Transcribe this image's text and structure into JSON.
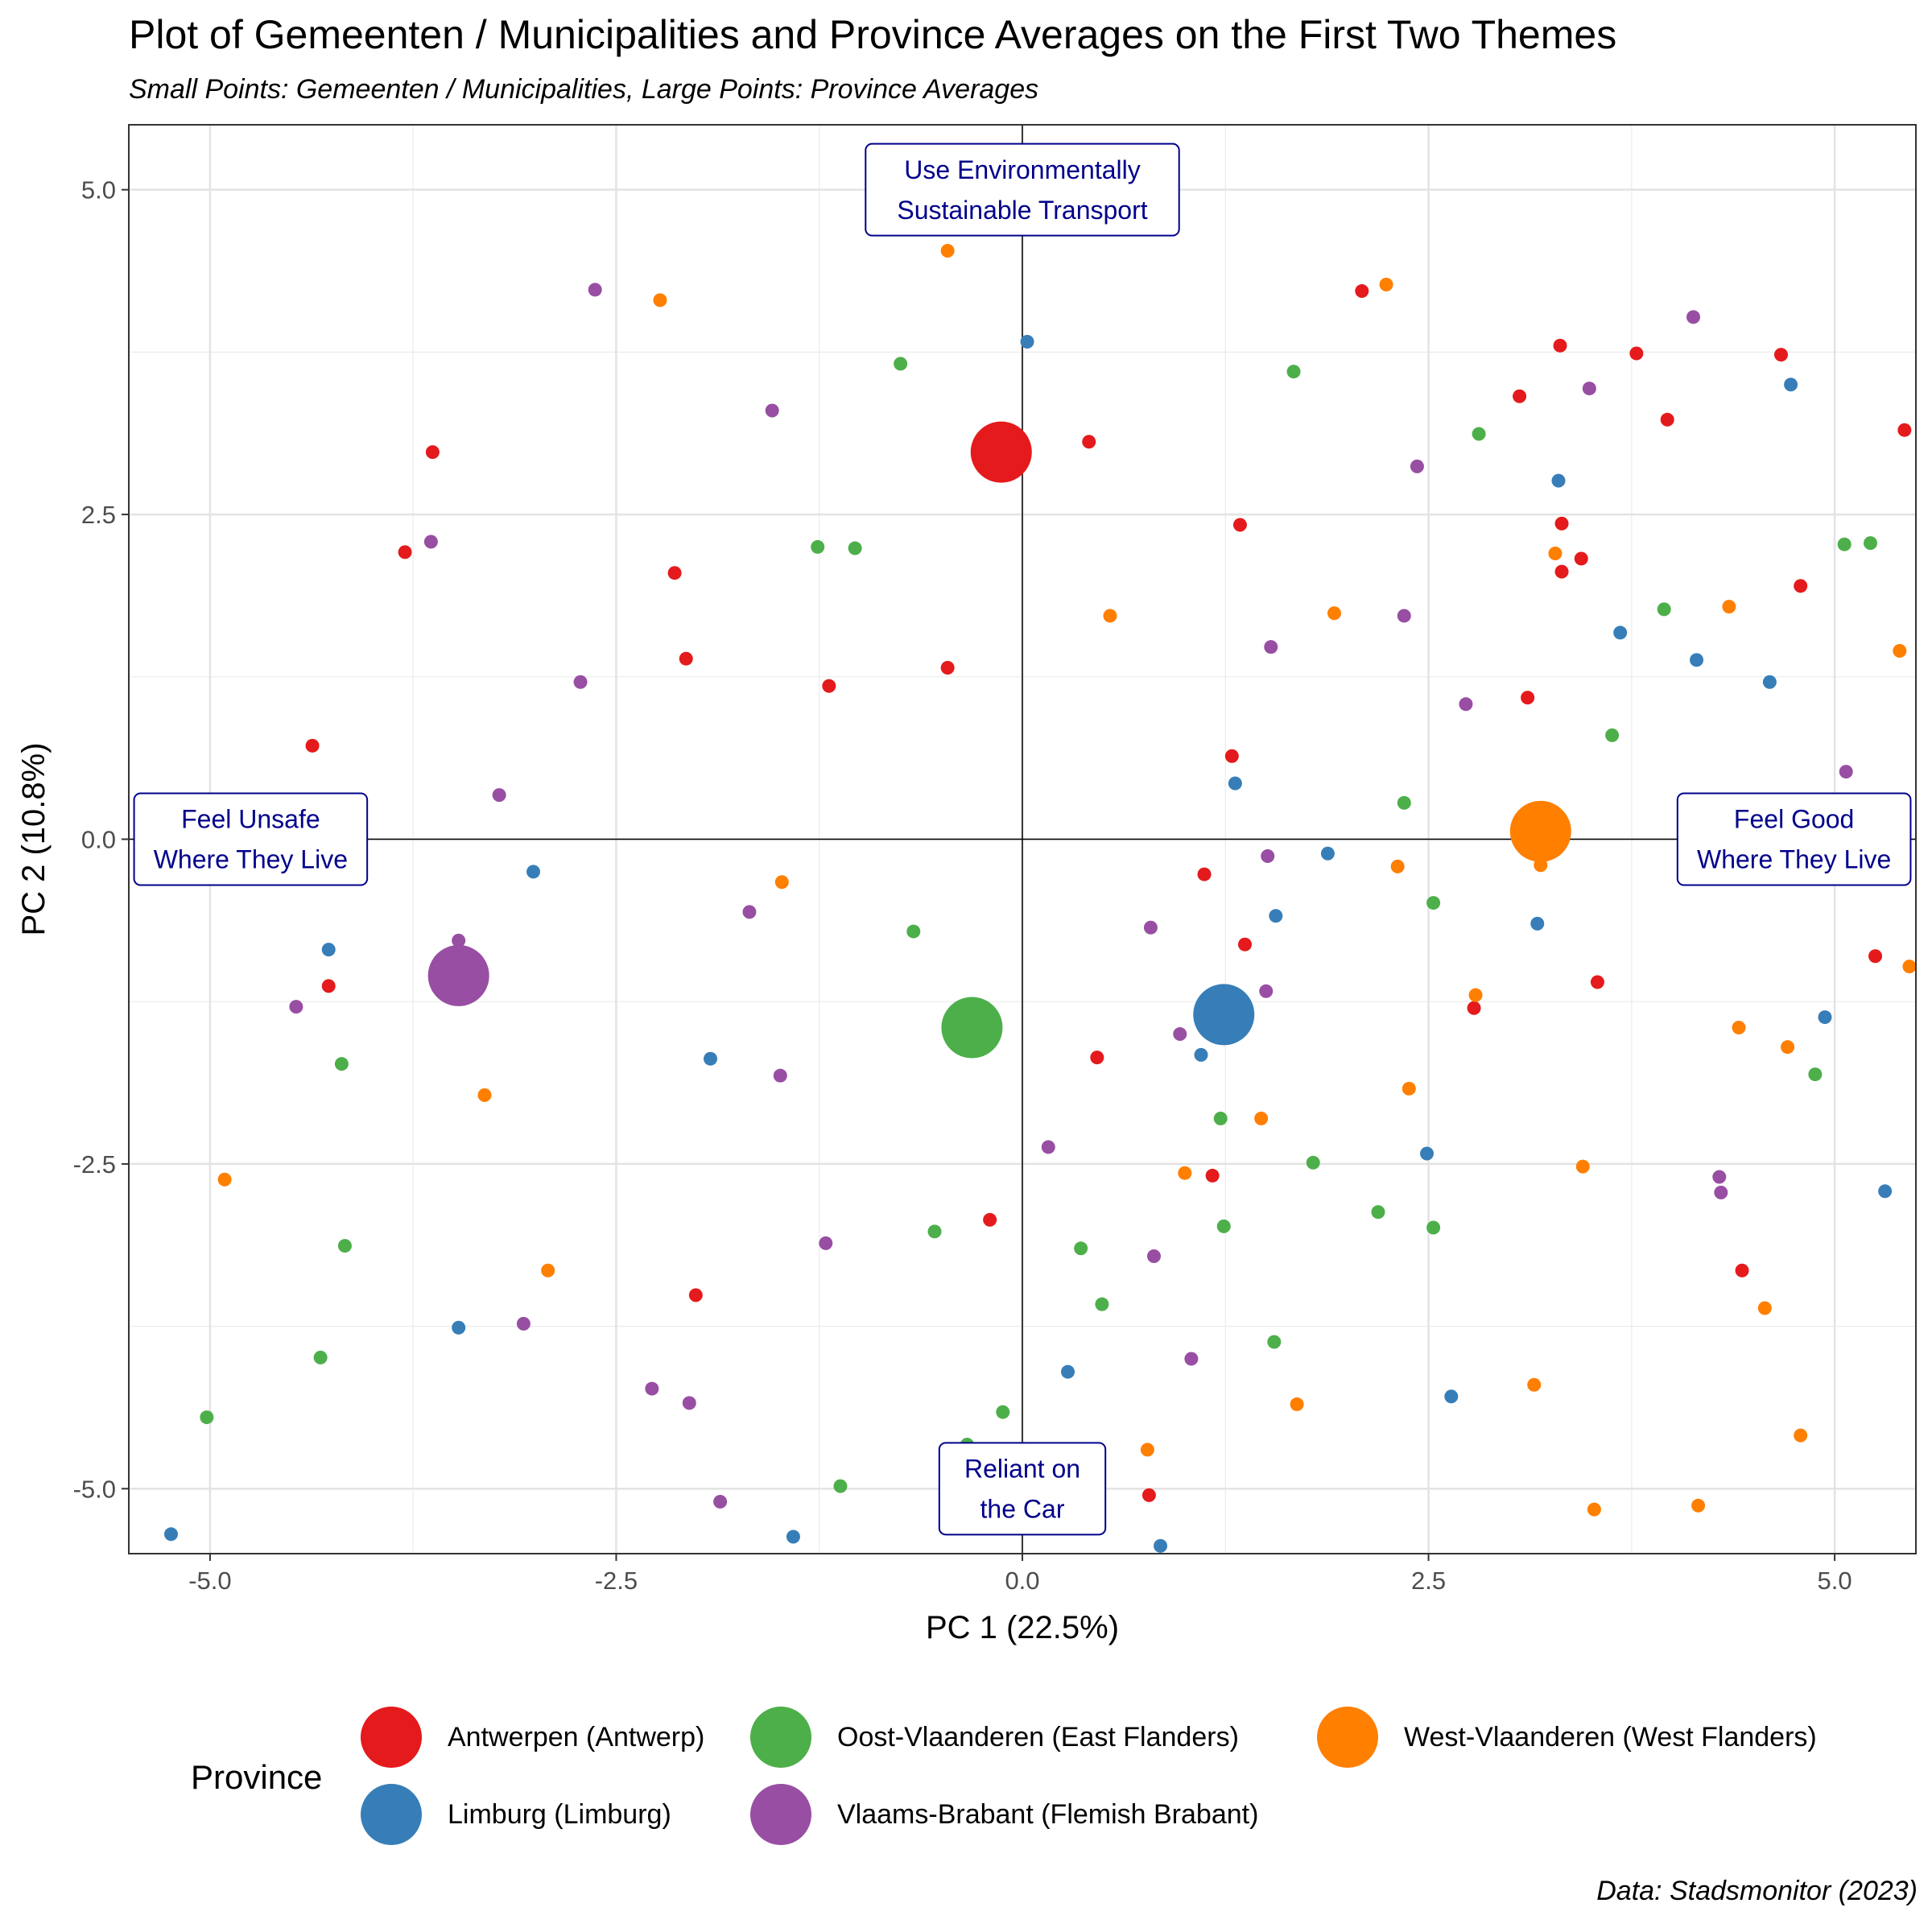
{
  "header": {
    "title": "Plot of Gemeenten / Municipalities and Province Averages on the First Two Themes",
    "subtitle": "Small Points: Gemeenten / Municipalities, Large Points: Province Averages"
  },
  "caption": "Data: Stadsmonitor (2023)",
  "legend": {
    "title": "Province",
    "items": [
      {
        "label": "Antwerpen (Antwerp)",
        "color": "#e41a1c"
      },
      {
        "label": "Oost-Vlaanderen (East Flanders)",
        "color": "#4daf4a"
      },
      {
        "label": "West-Vlaanderen (West Flanders)",
        "color": "#ff7f00"
      },
      {
        "label": "Limburg (Limburg)",
        "color": "#377eb8"
      },
      {
        "label": "Vlaams-Brabant (Flemish Brabant)",
        "color": "#984ea3"
      }
    ]
  },
  "chart_data": {
    "type": "scatter",
    "xlabel": "PC 1 (22.5%)",
    "ylabel": "PC 2 (10.8%)",
    "xlim": [
      -5.5,
      5.5
    ],
    "ylim": [
      -5.5,
      5.5
    ],
    "xticks": [
      -5.0,
      -2.5,
      0.0,
      2.5,
      5.0
    ],
    "yticks": [
      -5.0,
      -2.5,
      0.0,
      2.5,
      5.0
    ],
    "xtick_labels": [
      "-5.0",
      "-2.5",
      "0.0",
      "2.5",
      "5.0"
    ],
    "ytick_labels": [
      "-5.0",
      "-2.5",
      "0.0",
      "2.5",
      "5.0"
    ],
    "grid": true,
    "reference_lines": {
      "x": 0,
      "y": 0
    },
    "annotations": [
      {
        "lines": [
          "Use Environmentally",
          "Sustainable Transport"
        ],
        "x": 0,
        "y": 5.0
      },
      {
        "lines": [
          "Feel Unsafe",
          "Where They Live"
        ],
        "x": -4.75,
        "y": 0
      },
      {
        "lines": [
          "Feel Good",
          "Where They Live"
        ],
        "x": 4.75,
        "y": 0
      },
      {
        "lines": [
          "Reliant on",
          "the Car"
        ],
        "x": 0,
        "y": -5.0
      }
    ],
    "series": [
      {
        "name": "Antwerpen (Antwerp)",
        "color": "#e41a1c",
        "average": [
          -0.13,
          2.98
        ],
        "points": [
          [
            -3.63,
            2.98
          ],
          [
            -3.8,
            2.21
          ],
          [
            -4.37,
            0.72
          ],
          [
            -4.27,
            -1.13
          ],
          [
            -2.14,
            2.05
          ],
          [
            -2.07,
            1.39
          ],
          [
            -1.19,
            1.18
          ],
          [
            -0.46,
            1.32
          ],
          [
            0.41,
            3.06
          ],
          [
            2.09,
            4.22
          ],
          [
            1.34,
            2.42
          ],
          [
            1.29,
            0.64
          ],
          [
            1.12,
            -0.27
          ],
          [
            1.37,
            -0.81
          ],
          [
            0.46,
            -1.68
          ],
          [
            -0.2,
            -2.93
          ],
          [
            -2.01,
            -3.51
          ],
          [
            0.78,
            -5.05
          ],
          [
            1.17,
            -2.59
          ],
          [
            2.78,
            -1.3
          ],
          [
            3.06,
            3.41
          ],
          [
            3.31,
            3.8
          ],
          [
            3.78,
            3.74
          ],
          [
            3.97,
            3.23
          ],
          [
            4.67,
            3.73
          ],
          [
            5.43,
            3.15
          ],
          [
            3.32,
            2.43
          ],
          [
            3.44,
            2.16
          ],
          [
            3.32,
            2.06
          ],
          [
            3.11,
            1.09
          ],
          [
            4.79,
            1.95
          ],
          [
            3.54,
            -1.1
          ],
          [
            5.25,
            -0.9
          ],
          [
            4.43,
            -3.32
          ]
        ]
      },
      {
        "name": "Limburg (Limburg)",
        "color": "#377eb8",
        "average": [
          1.24,
          -1.35
        ],
        "points": [
          [
            0.03,
            3.83
          ],
          [
            -5.24,
            -5.35
          ],
          [
            -4.27,
            -0.85
          ],
          [
            -3.01,
            -0.25
          ],
          [
            -1.92,
            -1.69
          ],
          [
            -3.47,
            -3.76
          ],
          [
            -1.41,
            -5.37
          ],
          [
            0.28,
            -4.1
          ],
          [
            0.85,
            -5.44
          ],
          [
            1.31,
            0.43
          ],
          [
            1.88,
            -0.11
          ],
          [
            1.56,
            -0.59
          ],
          [
            1.1,
            -1.66
          ],
          [
            2.49,
            -2.42
          ],
          [
            2.64,
            -4.29
          ],
          [
            3.17,
            -0.65
          ],
          [
            3.3,
            2.76
          ],
          [
            3.68,
            1.59
          ],
          [
            4.15,
            1.38
          ],
          [
            4.6,
            1.21
          ],
          [
            4.73,
            3.5
          ],
          [
            4.94,
            -1.37
          ],
          [
            5.31,
            -2.71
          ]
        ]
      },
      {
        "name": "Oost-Vlaanderen (East Flanders)",
        "color": "#4daf4a",
        "average": [
          -0.31,
          -1.45
        ],
        "points": [
          [
            -0.75,
            3.66
          ],
          [
            -1.26,
            2.25
          ],
          [
            -1.03,
            2.24
          ],
          [
            1.67,
            3.6
          ],
          [
            2.81,
            3.12
          ],
          [
            -0.67,
            -0.71
          ],
          [
            -4.19,
            -1.73
          ],
          [
            -4.17,
            -3.13
          ],
          [
            -4.32,
            -3.99
          ],
          [
            -5.02,
            -4.45
          ],
          [
            -1.12,
            -4.98
          ],
          [
            -0.34,
            -4.66
          ],
          [
            -0.12,
            -4.41
          ],
          [
            -0.54,
            -3.02
          ],
          [
            0.36,
            -3.15
          ],
          [
            0.49,
            -3.58
          ],
          [
            1.24,
            -2.98
          ],
          [
            1.22,
            -2.15
          ],
          [
            1.79,
            -2.49
          ],
          [
            2.19,
            -2.87
          ],
          [
            2.53,
            -2.99
          ],
          [
            1.55,
            -3.87
          ],
          [
            2.35,
            0.28
          ],
          [
            2.53,
            -0.49
          ],
          [
            3.95,
            1.77
          ],
          [
            3.63,
            0.8
          ],
          [
            5.06,
            2.27
          ],
          [
            5.22,
            2.28
          ],
          [
            4.88,
            -1.81
          ]
        ]
      },
      {
        "name": "West-Vlaanderen (West Flanders)",
        "color": "#ff7f00",
        "average": [
          3.19,
          0.06
        ],
        "points": [
          [
            -0.46,
            4.53
          ],
          [
            -2.23,
            4.15
          ],
          [
            2.24,
            4.27
          ],
          [
            -4.91,
            -2.62
          ],
          [
            -3.31,
            -1.97
          ],
          [
            -1.48,
            -0.33
          ],
          [
            -2.92,
            -3.32
          ],
          [
            0.54,
            1.72
          ],
          [
            1.92,
            1.74
          ],
          [
            3.28,
            2.2
          ],
          [
            4.35,
            1.79
          ],
          [
            5.4,
            1.45
          ],
          [
            2.31,
            -0.21
          ],
          [
            3.19,
            -0.2
          ],
          [
            2.79,
            -1.2
          ],
          [
            2.38,
            -1.92
          ],
          [
            1.47,
            -2.15
          ],
          [
            1.0,
            -2.57
          ],
          [
            3.45,
            -2.52
          ],
          [
            4.41,
            -1.45
          ],
          [
            4.71,
            -1.6
          ],
          [
            5.46,
            -0.98
          ],
          [
            4.57,
            -3.61
          ],
          [
            3.15,
            -4.2
          ],
          [
            1.69,
            -4.35
          ],
          [
            0.77,
            -4.7
          ],
          [
            4.79,
            -4.59
          ],
          [
            3.52,
            -5.16
          ],
          [
            4.16,
            -5.13
          ]
        ]
      },
      {
        "name": "Vlaams-Brabant (Flemish Brabant)",
        "color": "#984ea3",
        "average": [
          -3.47,
          -1.05
        ],
        "points": [
          [
            -2.63,
            4.23
          ],
          [
            -1.54,
            3.3
          ],
          [
            -3.64,
            2.29
          ],
          [
            -2.72,
            1.21
          ],
          [
            -3.22,
            0.34
          ],
          [
            -1.68,
            -0.56
          ],
          [
            -3.47,
            -0.78
          ],
          [
            -4.47,
            -1.29
          ],
          [
            -1.49,
            -1.82
          ],
          [
            -1.21,
            -3.11
          ],
          [
            -3.07,
            -3.73
          ],
          [
            -2.28,
            -4.23
          ],
          [
            -2.05,
            -4.34
          ],
          [
            -1.86,
            -5.1
          ],
          [
            0.16,
            -2.37
          ],
          [
            0.81,
            -3.21
          ],
          [
            1.04,
            -4.0
          ],
          [
            0.79,
            -0.68
          ],
          [
            0.97,
            -1.5
          ],
          [
            1.5,
            -1.17
          ],
          [
            1.51,
            -0.13
          ],
          [
            1.53,
            1.48
          ],
          [
            2.35,
            1.72
          ],
          [
            2.43,
            2.87
          ],
          [
            2.73,
            1.04
          ],
          [
            3.49,
            3.47
          ],
          [
            4.13,
            4.02
          ],
          [
            5.07,
            0.52
          ],
          [
            4.29,
            -2.6
          ],
          [
            4.3,
            -2.72
          ]
        ]
      }
    ]
  }
}
